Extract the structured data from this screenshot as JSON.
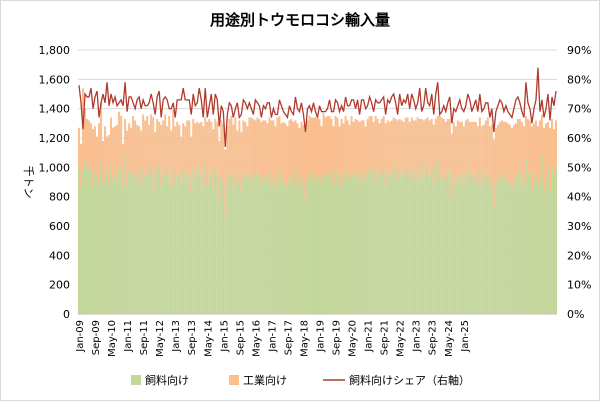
{
  "chart_data": {
    "type": "bar",
    "title": "用途別トウモロコシ輸入量",
    "ylabel": "千トン",
    "y2label": "",
    "ylim": [
      0,
      1800
    ],
    "y2lim": [
      0,
      90
    ],
    "y_ticks": [
      "0",
      "200",
      "400",
      "600",
      "800",
      "1,000",
      "1,200",
      "1,400",
      "1,600",
      "1,800"
    ],
    "y2_ticks": [
      "0%",
      "10%",
      "20%",
      "30%",
      "40%",
      "50%",
      "60%",
      "70%",
      "80%",
      "90%"
    ],
    "x_tick_labels": [
      "Jan-09",
      "Sep-09",
      "May-10",
      "Jan-11",
      "Sep-11",
      "May-12",
      "Jan-13",
      "Sep-13",
      "May-14",
      "Jan-15",
      "Sep-15",
      "May-16",
      "Jan-17",
      "Sep-17",
      "May-18",
      "Jan-19",
      "Sep-19",
      "May-20",
      "Jan-21",
      "Sep-21",
      "May-22",
      "Jan-23",
      "Sep-23",
      "May-24",
      "Jan-25"
    ],
    "grid": true,
    "legend_position": "bottom",
    "colors": {
      "feed": "#c4d79b",
      "industrial": "#fabf8f",
      "share": "#b03a2e"
    },
    "series": [
      {
        "name": "飼料向け",
        "kind": "stacked-bar",
        "values": [
          1000,
          860,
          980,
          1050,
          1000,
          990,
          1020,
          880,
          970,
          950,
          870,
          1040,
          900,
          930,
          980,
          870,
          1010,
          920,
          960,
          930,
          1000,
          1000,
          860,
          1080,
          870,
          980,
          940,
          980,
          920,
          940,
          950,
          870,
          1000,
          940,
          960,
          930,
          1020,
          960,
          840,
          980,
          1000,
          870,
          960,
          1000,
          930,
          940,
          880,
          1000,
          860,
          950,
          940,
          890,
          1000,
          930,
          960,
          960,
          820,
          1000,
          920,
          950,
          1000,
          960,
          860,
          1030,
          880,
          940,
          980,
          860,
          1000,
          950,
          760,
          940,
          900,
          640,
          870,
          960,
          960,
          870,
          940,
          900,
          890,
          840,
          960,
          940,
          900,
          960,
          940,
          910,
          970,
          960,
          950,
          880,
          940,
          920,
          930,
          960,
          880,
          930,
          870,
          910,
          990,
          920,
          900,
          880,
          860,
          940,
          920,
          890,
          980,
          910,
          870,
          940,
          880,
          780,
          920,
          960,
          920,
          970,
          930,
          900,
          940,
          880,
          950,
          940,
          950,
          980,
          920,
          880,
          990,
          960,
          880,
          950,
          900,
          1000,
          940,
          920,
          980,
          950,
          930,
          960,
          890,
          960,
          970,
          900,
          950,
          1000,
          970,
          900,
          990,
          960,
          940,
          960,
          1000,
          880,
          960,
          940,
          980,
          1010,
          960,
          900,
          1000,
          940,
          960,
          960,
          1000,
          920,
          1010,
          960,
          920,
          960,
          1030,
          920,
          940,
          1030,
          960,
          940,
          1000,
          880,
          1000,
          1060,
          920,
          930,
          950,
          900,
          960,
          980,
          800,
          920,
          880,
          940,
          960,
          920,
          880,
          940,
          1000,
          960,
          900,
          930,
          960,
          880,
          1000,
          880,
          900,
          950,
          960,
          860,
          900,
          740,
          880,
          910,
          960,
          950,
          900,
          930,
          900,
          880,
          850,
          900,
          950,
          990,
          960,
          900,
          860,
          1060,
          960,
          960,
          820,
          900,
          960,
          880,
          920,
          1080,
          820,
          900,
          1000,
          840,
          990,
          960,
          1010
        ],
        "values_note": ""
      },
      {
        "name": "工業向け",
        "kind": "stacked-bar",
        "values": [
          270,
          300,
          560,
          350,
          330,
          330,
          280,
          380,
          310,
          260,
          430,
          400,
          280,
          350,
          230,
          350,
          330,
          350,
          320,
          360,
          380,
          350,
          300,
          250,
          380,
          320,
          330,
          370,
          400,
          350,
          330,
          380,
          360,
          380,
          390,
          360,
          340,
          380,
          400,
          350,
          310,
          420,
          360,
          360,
          350,
          410,
          370,
          390,
          420,
          360,
          350,
          320,
          300,
          350,
          360,
          360,
          390,
          330,
          380,
          360,
          300,
          350,
          420,
          310,
          430,
          390,
          330,
          400,
          330,
          360,
          420,
          380,
          400,
          480,
          410,
          370,
          390,
          420,
          400,
          350,
          430,
          400,
          360,
          370,
          380,
          380,
          400,
          420,
          350,
          380,
          380,
          430,
          380,
          400,
          370,
          380,
          440,
          390,
          410,
          430,
          360,
          380,
          410,
          420,
          420,
          380,
          410,
          420,
          340,
          390,
          400,
          370,
          410,
          480,
          400,
          390,
          420,
          370,
          410,
          450,
          390,
          400,
          420,
          400,
          400,
          370,
          410,
          400,
          360,
          380,
          400,
          380,
          400,
          350,
          380,
          370,
          370,
          360,
          400,
          360,
          420,
          360,
          350,
          380,
          380,
          350,
          380,
          410,
          360,
          370,
          360,
          370,
          350,
          420,
          360,
          370,
          340,
          330,
          370,
          420,
          330,
          380,
          350,
          380,
          340,
          390,
          330,
          360,
          400,
          380,
          300,
          410,
          380,
          300,
          380,
          380,
          330,
          410,
          330,
          290,
          430,
          410,
          380,
          410,
          370,
          350,
          430,
          390,
          400,
          380,
          350,
          390,
          400,
          380,
          330,
          350,
          410,
          380,
          350,
          400,
          340,
          400,
          390,
          370,
          380,
          420,
          390,
          450,
          390,
          380,
          350,
          370,
          410,
          380,
          400,
          410,
          420,
          390,
          350,
          340,
          370,
          410,
          420,
          290,
          370,
          360,
          460,
          400,
          360,
          400,
          400,
          280,
          450,
          400,
          310,
          430,
          340,
          300,
          310
        ],
        "values_note": ""
      },
      {
        "name": "飼料向けシェア（右軸）",
        "kind": "line",
        "axis": "right",
        "values": [
          78,
          72,
          63,
          75,
          74,
          74,
          77,
          70,
          74,
          76,
          67,
          72,
          75,
          72,
          79,
          71,
          75,
          72,
          74,
          71,
          72,
          73,
          71,
          79,
          69,
          74,
          74,
          72,
          70,
          73,
          74,
          70,
          73,
          71,
          71,
          72,
          75,
          72,
          68,
          74,
          76,
          67,
          73,
          74,
          73,
          70,
          70,
          72,
          67,
          73,
          73,
          73,
          77,
          73,
          73,
          73,
          68,
          75,
          71,
          72,
          77,
          73,
          67,
          77,
          67,
          71,
          75,
          68,
          75,
          73,
          64,
          71,
          69,
          57,
          68,
          72,
          71,
          67,
          70,
          72,
          67,
          68,
          73,
          72,
          70,
          72,
          70,
          68,
          73,
          72,
          71,
          67,
          71,
          70,
          72,
          72,
          67,
          70,
          68,
          68,
          73,
          71,
          69,
          68,
          67,
          71,
          69,
          68,
          74,
          70,
          69,
          72,
          68,
          62,
          70,
          71,
          69,
          72,
          69,
          67,
          71,
          69,
          69,
          69,
          70,
          73,
          69,
          69,
          73,
          72,
          69,
          71,
          69,
          74,
          71,
          71,
          73,
          73,
          70,
          73,
          68,
          73,
          73,
          70,
          71,
          74,
          72,
          69,
          73,
          72,
          72,
          73,
          74,
          68,
          73,
          72,
          74,
          75,
          72,
          68,
          75,
          71,
          73,
          72,
          75,
          70,
          75,
          73,
          70,
          72,
          77,
          69,
          71,
          77,
          72,
          71,
          75,
          68,
          75,
          79,
          68,
          69,
          71,
          69,
          72,
          74,
          65,
          70,
          69,
          71,
          73,
          70,
          69,
          71,
          75,
          73,
          69,
          71,
          73,
          69,
          75,
          69,
          70,
          72,
          72,
          67,
          70,
          62,
          69,
          71,
          73,
          72,
          69,
          71,
          69,
          68,
          67,
          70,
          73,
          74,
          72,
          69,
          67,
          79,
          72,
          70,
          65,
          70,
          73,
          84,
          69,
          73,
          67,
          70,
          75,
          66,
          74,
          71,
          76
        ]
      }
    ]
  }
}
